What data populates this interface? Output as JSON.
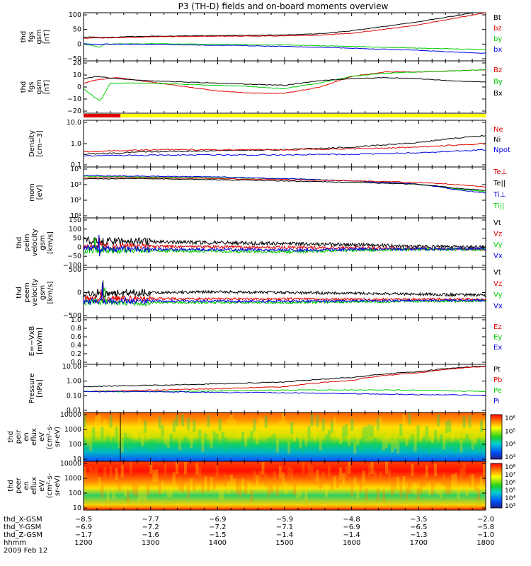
{
  "title": "P3 (TH-D) fields and on-board moments overview",
  "date": "2009 Feb 12",
  "colors": {
    "black": "#000000",
    "red": "#e00000",
    "green": "#00cc00",
    "blue": "#0000e0",
    "yellow": "#ffff00"
  },
  "chart_data": [
    {
      "id": "p1",
      "type": "line",
      "ylabel": [
        "thd",
        "fgs",
        "gsm",
        "[nT]"
      ],
      "yticks": [
        "100",
        "50",
        "0",
        "−50"
      ],
      "ylim": [
        -60,
        100
      ],
      "legend": [
        {
          "name": "Bt",
          "color": "black"
        },
        {
          "name": "bz",
          "color": "red"
        },
        {
          "name": "by",
          "color": "green"
        },
        {
          "name": "bx",
          "color": "blue"
        }
      ],
      "series": [
        {
          "name": "Bt",
          "color": "black",
          "x": [
            1200,
            1210,
            1230,
            1300,
            1400,
            1500,
            1550,
            1600,
            1650,
            1700,
            1750,
            1800
          ],
          "y": [
            18,
            20,
            18,
            22,
            24,
            26,
            30,
            40,
            55,
            70,
            88,
            108
          ]
        },
        {
          "name": "bz",
          "color": "red",
          "x": [
            1200,
            1210,
            1230,
            1300,
            1400,
            1500,
            1550,
            1600,
            1650,
            1700,
            1750,
            1800
          ],
          "y": [
            14,
            16,
            16,
            20,
            22,
            23,
            25,
            32,
            45,
            60,
            80,
            100
          ]
        },
        {
          "name": "by",
          "color": "green",
          "x": [
            1200,
            1210,
            1225,
            1230,
            1300,
            1400,
            1500,
            1600,
            1700,
            1800
          ],
          "y": [
            -5,
            -8,
            -15,
            -4,
            -3,
            -5,
            -7,
            -12,
            -18,
            -22
          ]
        },
        {
          "name": "bx",
          "color": "blue",
          "x": [
            1200,
            1300,
            1400,
            1500,
            1600,
            1700,
            1750,
            1800
          ],
          "y": [
            -4,
            -5,
            -8,
            -12,
            -18,
            -25,
            -30,
            -35
          ]
        }
      ]
    },
    {
      "id": "p2",
      "type": "line",
      "ylabel": [
        "thd",
        "fgs",
        "gsm",
        "[nT]"
      ],
      "yticks": [
        "20",
        "10",
        "0",
        "−10",
        "−20"
      ],
      "ylim": [
        -25,
        22
      ],
      "legend": [
        {
          "name": "Bz",
          "color": "red"
        },
        {
          "name": "By",
          "color": "green"
        },
        {
          "name": "Bx",
          "color": "black"
        }
      ],
      "series": [
        {
          "name": "Bz",
          "color": "red",
          "x": [
            1200,
            1220,
            1250,
            1300,
            1350,
            1400,
            1450,
            1500,
            1550,
            1600,
            1650,
            1700,
            1750,
            1800
          ],
          "y": [
            2,
            5,
            7,
            3,
            -1,
            -5,
            -7,
            -7,
            -2,
            8,
            12,
            12,
            13,
            14
          ]
        },
        {
          "name": "By",
          "color": "green",
          "x": [
            1200,
            1215,
            1225,
            1240,
            1300,
            1350,
            1400,
            1450,
            1500,
            1550,
            1600,
            1650,
            1700,
            1750,
            1800
          ],
          "y": [
            -3,
            -10,
            -14,
            2,
            2,
            1,
            0,
            -1,
            -3,
            2,
            8,
            11,
            12,
            13,
            14
          ]
        },
        {
          "name": "Bx",
          "color": "black",
          "x": [
            1200,
            1220,
            1250,
            1300,
            1350,
            1400,
            1450,
            1500,
            1550,
            1600,
            1650,
            1700,
            1750,
            1800
          ],
          "y": [
            6,
            8,
            6,
            4,
            3,
            2,
            1,
            0,
            4,
            6,
            7,
            6,
            4,
            3
          ]
        }
      ]
    },
    {
      "id": "p3",
      "type": "line",
      "ylabel": [
        "Density",
        "[cm−3]"
      ],
      "yticks": [
        "10.0",
        "1.0",
        "0.1"
      ],
      "log": true,
      "ylim": [
        0.1,
        10
      ],
      "legend": [
        {
          "name": "Ne",
          "color": "red"
        },
        {
          "name": "Ni",
          "color": "black"
        },
        {
          "name": "Npot",
          "color": "blue"
        }
      ],
      "series": [
        {
          "name": "Ni",
          "color": "black",
          "x": [
            1200,
            1300,
            1400,
            1500,
            1600,
            1700,
            1800
          ],
          "y": [
            0.35,
            0.45,
            0.5,
            0.55,
            0.7,
            1.1,
            2.2
          ]
        },
        {
          "name": "Ne",
          "color": "red",
          "x": [
            1200,
            1300,
            1400,
            1500,
            1600,
            1700,
            1800
          ],
          "y": [
            0.45,
            0.55,
            0.55,
            0.55,
            0.6,
            0.7,
            1.0
          ]
        },
        {
          "name": "Npot",
          "color": "blue",
          "x": [
            1200,
            1300,
            1400,
            1500,
            1600,
            1700,
            1800
          ],
          "y": [
            0.3,
            0.32,
            0.33,
            0.33,
            0.35,
            0.4,
            0.55
          ]
        }
      ]
    },
    {
      "id": "p4",
      "type": "line",
      "ylabel": [
        "mom",
        "[eV]"
      ],
      "yticks": [
        "10⁴",
        "10³",
        "10²",
        "10¹"
      ],
      "log": true,
      "ylim": [
        10,
        20000
      ],
      "legend": [
        {
          "name": "Te⊥",
          "color": "red"
        },
        {
          "name": "Te||",
          "color": "black"
        },
        {
          "name": "Ti⊥",
          "color": "blue"
        },
        {
          "name": "Ti||",
          "color": "green"
        }
      ],
      "series": [
        {
          "name": "Ti||",
          "color": "green",
          "x": [
            1200,
            1300,
            1400,
            1500,
            1600,
            1700,
            1750,
            1800
          ],
          "y": [
            5000,
            4500,
            4000,
            3500,
            2500,
            1500,
            800,
            500
          ]
        },
        {
          "name": "Ti⊥",
          "color": "blue",
          "x": [
            1200,
            1300,
            1400,
            1500,
            1600,
            1700,
            1750,
            1800
          ],
          "y": [
            5500,
            5000,
            4500,
            3500,
            2500,
            1500,
            700,
            400
          ]
        },
        {
          "name": "Te⊥",
          "color": "red",
          "x": [
            1200,
            1300,
            1400,
            1500,
            1600,
            1700,
            1750,
            1800
          ],
          "y": [
            4000,
            4000,
            3500,
            3000,
            2500,
            2000,
            1500,
            1000
          ]
        },
        {
          "name": "Te||",
          "color": "black",
          "x": [
            1200,
            1300,
            1400,
            1500,
            1600,
            1700,
            1750,
            1800
          ],
          "y": [
            3500,
            3500,
            3000,
            2500,
            2000,
            1500,
            900,
            600
          ]
        }
      ]
    },
    {
      "id": "p5",
      "type": "line",
      "ylabel": [
        "thd",
        "peim",
        "velocity",
        "gsm",
        "[km/s]"
      ],
      "yticks": [
        "150",
        "100",
        "50",
        "0",
        "−50",
        "−100"
      ],
      "ylim": [
        -100,
        160
      ],
      "legend": [
        {
          "name": "Vt",
          "color": "black"
        },
        {
          "name": "Vz",
          "color": "red"
        },
        {
          "name": "Vy",
          "color": "green"
        },
        {
          "name": "Vx",
          "color": "blue"
        }
      ],
      "series": [
        {
          "name": "Vt",
          "color": "black",
          "x": [
            1200,
            1300,
            1400,
            1500,
            1600,
            1700,
            1800
          ],
          "y": [
            40,
            35,
            30,
            25,
            20,
            10,
            5
          ]
        },
        {
          "name": "Vz",
          "color": "red",
          "x": [
            1200,
            1300,
            1400,
            1500,
            1600,
            1700,
            1800
          ],
          "y": [
            15,
            10,
            8,
            5,
            3,
            0,
            -5
          ]
        },
        {
          "name": "Vy",
          "color": "green",
          "x": [
            1200,
            1300,
            1400,
            1500,
            1600,
            1700,
            1800
          ],
          "y": [
            -10,
            -12,
            -15,
            -18,
            -10,
            -5,
            -5
          ]
        },
        {
          "name": "Vx",
          "color": "blue",
          "x": [
            1200,
            1300,
            1400,
            1500,
            1600,
            1700,
            1800
          ],
          "y": [
            0,
            -5,
            -5,
            -10,
            -5,
            -3,
            -2
          ]
        }
      ]
    },
    {
      "id": "p6",
      "type": "line",
      "ylabel": [
        "thd",
        "peem",
        "velocity",
        "gsm",
        "[km/s]"
      ],
      "yticks": [
        "500",
        "0",
        "−500"
      ],
      "ylim": [
        -550,
        950
      ],
      "legend": [
        {
          "name": "Vt",
          "color": "black"
        },
        {
          "name": "Vz",
          "color": "red"
        },
        {
          "name": "Vy",
          "color": "green"
        },
        {
          "name": "Vx",
          "color": "blue"
        }
      ],
      "series": [
        {
          "name": "Vt",
          "color": "black",
          "x": [
            1200,
            1300,
            1400,
            1500,
            1600,
            1700,
            1800
          ],
          "y": [
            150,
            200,
            220,
            200,
            180,
            150,
            120
          ]
        },
        {
          "name": "Vz",
          "color": "red",
          "x": [
            1200,
            1300,
            1400,
            1500,
            1600,
            1700,
            1800
          ],
          "y": [
            20,
            20,
            10,
            10,
            0,
            0,
            0
          ]
        },
        {
          "name": "Vy",
          "color": "green",
          "x": [
            1200,
            1300,
            1400,
            1500,
            1600,
            1700,
            1800
          ],
          "y": [
            -80,
            -100,
            -100,
            -100,
            -80,
            -60,
            -50
          ]
        },
        {
          "name": "Vx",
          "color": "blue",
          "x": [
            1200,
            1300,
            1400,
            1500,
            1600,
            1700,
            1800
          ],
          "y": [
            -50,
            -50,
            -60,
            -60,
            -50,
            -40,
            -30
          ]
        }
      ]
    },
    {
      "id": "p7",
      "type": "line",
      "ylabel": [
        "E=−VxB",
        "[mV/m]"
      ],
      "yticks": [
        "1.0",
        "0.8",
        "0.6",
        "0.4",
        "0.2",
        "0.0"
      ],
      "ylim": [
        0,
        1
      ],
      "legend": [
        {
          "name": "Ez",
          "color": "red"
        },
        {
          "name": "Ey",
          "color": "green"
        },
        {
          "name": "Ex",
          "color": "blue"
        }
      ],
      "series": []
    },
    {
      "id": "p8",
      "type": "line",
      "ylabel": [
        "Pressure",
        "[nPa]"
      ],
      "yticks": [
        "10.00",
        "1.00",
        "0.10",
        "0.01"
      ],
      "log": true,
      "ylim": [
        0.01,
        10
      ],
      "legend": [
        {
          "name": "Pt",
          "color": "black"
        },
        {
          "name": "Pb",
          "color": "red"
        },
        {
          "name": "Pe",
          "color": "green"
        },
        {
          "name": "Pi",
          "color": "blue"
        }
      ],
      "series": [
        {
          "name": "Pt",
          "color": "black",
          "x": [
            1200,
            1300,
            1400,
            1500,
            1600,
            1700,
            1800
          ],
          "y": [
            0.4,
            0.5,
            0.6,
            0.8,
            1.5,
            3.5,
            8
          ]
        },
        {
          "name": "Pb",
          "color": "red",
          "x": [
            1200,
            1300,
            1400,
            1500,
            1600,
            1700,
            1800
          ],
          "y": [
            0.2,
            0.25,
            0.3,
            0.4,
            1.0,
            3.0,
            7.5
          ]
        },
        {
          "name": "Pe",
          "color": "green",
          "x": [
            1200,
            1300,
            1400,
            1500,
            1600,
            1700,
            1800
          ],
          "y": [
            0.2,
            0.2,
            0.22,
            0.25,
            0.25,
            0.25,
            0.2
          ]
        },
        {
          "name": "Pi",
          "color": "blue",
          "x": [
            1200,
            1300,
            1400,
            1500,
            1600,
            1700,
            1800
          ],
          "y": [
            0.2,
            0.2,
            0.18,
            0.17,
            0.15,
            0.13,
            0.12
          ]
        }
      ]
    },
    {
      "id": "p9",
      "type": "heatmap",
      "ylabel": [
        "thd",
        "peir",
        "en",
        "eflux",
        "eV",
        "(cm²-s-",
        "sr-eV)"
      ],
      "yticks": [
        "10000",
        "1000",
        "100",
        "10"
      ],
      "log": true,
      "ylim": [
        6,
        20000
      ],
      "colorbar": [
        "10⁶",
        "10⁵",
        "10⁴",
        "10³"
      ]
    },
    {
      "id": "p10",
      "type": "heatmap",
      "ylabel": [
        "thd",
        "peer",
        "en",
        "eflux",
        "eV/",
        "(cm²-s-",
        "sr-eV)"
      ],
      "yticks": [
        "10000",
        "1000",
        "100",
        "10"
      ],
      "log": true,
      "ylim": [
        6,
        20000
      ],
      "colorbar": [
        "10⁸",
        "10⁷",
        "10⁶",
        "10⁵",
        "10⁴",
        "10³"
      ]
    }
  ],
  "xaxis": {
    "x_gsm": [
      "−8.5",
      "−7.7",
      "−6.9",
      "−5.9",
      "−4.8",
      "−3.5",
      "−2.0"
    ],
    "y_gsm": [
      "−6.9",
      "−7.2",
      "−7.2",
      "−7.1",
      "−6.9",
      "−6.5",
      "−5.8"
    ],
    "z_gsm": [
      "−1.7",
      "−1.6",
      "−1.5",
      "−1.4",
      "−1.4",
      "−1.3",
      "−1.0"
    ],
    "hhmm": [
      "1200",
      "1300",
      "1400",
      "1500",
      "1600",
      "1700",
      "1800"
    ],
    "row_labels": [
      "thd_X-GSM",
      "thd_Y-GSM",
      "thd_Z-GSM",
      "hhmm"
    ]
  }
}
